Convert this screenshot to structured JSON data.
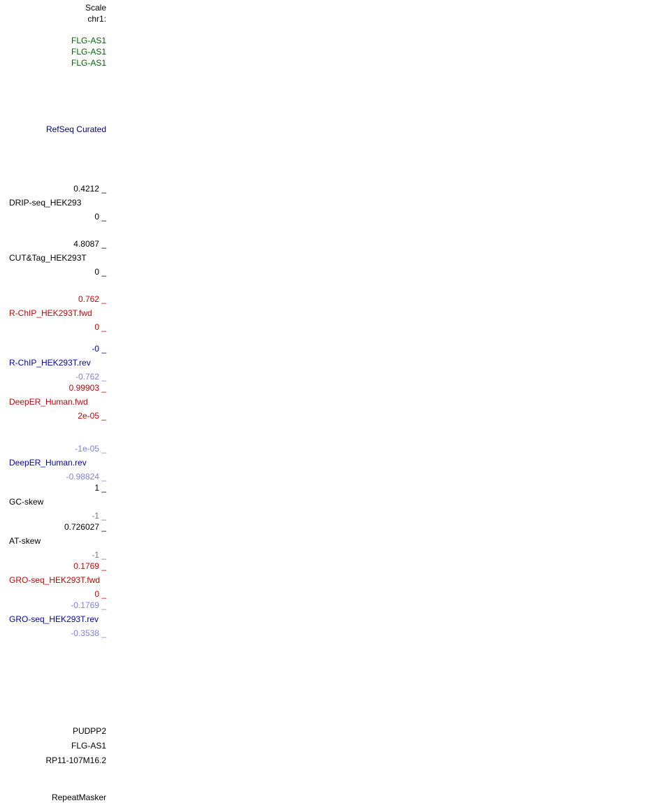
{
  "header": {
    "scale": "Scale",
    "chrom": "chr1:"
  },
  "genes_top": [
    "FLG-AS1",
    "FLG-AS1",
    "FLG-AS1"
  ],
  "refseq_label": "RefSeq Curated",
  "tracks": {
    "drip": {
      "max": "0.4212 _",
      "name": "DRIP-seq_HEK293",
      "min": "0 _"
    },
    "cuttag": {
      "max": "4.8087 _",
      "name": "CUT&Tag_HEK293T",
      "min": "0 _"
    },
    "rchip_fwd": {
      "max": "0.762 _",
      "name": "R-ChIP_HEK293T.fwd",
      "min": "0 _"
    },
    "rchip_rev": {
      "max": "-0 _",
      "name": "R-ChIP_HEK293T.rev",
      "min": "-0.762 _"
    },
    "deeper_fwd": {
      "max": "0.99903 _",
      "name": "DeepER_Human.fwd",
      "min": "2e-05 _"
    },
    "deeper_rev": {
      "max": "-1e-05 _",
      "name": "DeepER_Human.rev",
      "min": "-0.98824 _"
    },
    "gcskew": {
      "max": "1 _",
      "name": "GC-skew",
      "min": "-1 _"
    },
    "atskew": {
      "max": "0.726027 _",
      "name": "AT-skew",
      "min": "-1 _"
    },
    "gro_fwd": {
      "max": "0.1769 _",
      "name": "GRO-seq_HEK293T.fwd",
      "min": "0 _"
    },
    "gro_rev": {
      "max": "-0.1769 _",
      "name": "GRO-seq_HEK293T.rev",
      "min": "-0.3538 _"
    }
  },
  "genes_bottom": [
    "PUDPP2",
    "FLG-AS1",
    "RP11-107M16.2"
  ],
  "repeatmasker_label": "RepeatMasker",
  "colors": {
    "fwd": "#cc0000",
    "rev": "#0000b0",
    "rev_scale": "#7f7fe8",
    "gene": "#006400",
    "refseq": "#000080"
  }
}
